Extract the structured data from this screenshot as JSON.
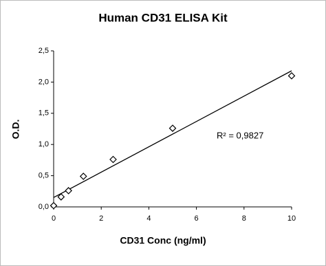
{
  "chart_data": {
    "type": "scatter",
    "title": "Human CD31 ELISA Kit",
    "xlabel": "CD31 Conc (ng/ml)",
    "ylabel": "O.D.",
    "x": [
      0,
      0.3125,
      0.625,
      1.25,
      2.5,
      5,
      10
    ],
    "values": [
      0.02,
      0.16,
      0.26,
      0.49,
      0.76,
      1.26,
      2.1
    ],
    "color": "#000000",
    "trendline": "linear",
    "annotation": "R² = 0,9827",
    "xlim": [
      0,
      10
    ],
    "xticks": [
      0,
      2,
      4,
      6,
      8,
      10
    ],
    "ylim": [
      0,
      2.5
    ],
    "yticks": [
      {
        "value": 0,
        "label": "0,0"
      },
      {
        "value": 0.5,
        "label": "0,5"
      },
      {
        "value": 1,
        "label": "1,0"
      },
      {
        "value": 1.5,
        "label": "1,5"
      },
      {
        "value": 2,
        "label": "2,0"
      },
      {
        "value": 2.5,
        "label": "2,5"
      }
    ],
    "grid": false
  }
}
